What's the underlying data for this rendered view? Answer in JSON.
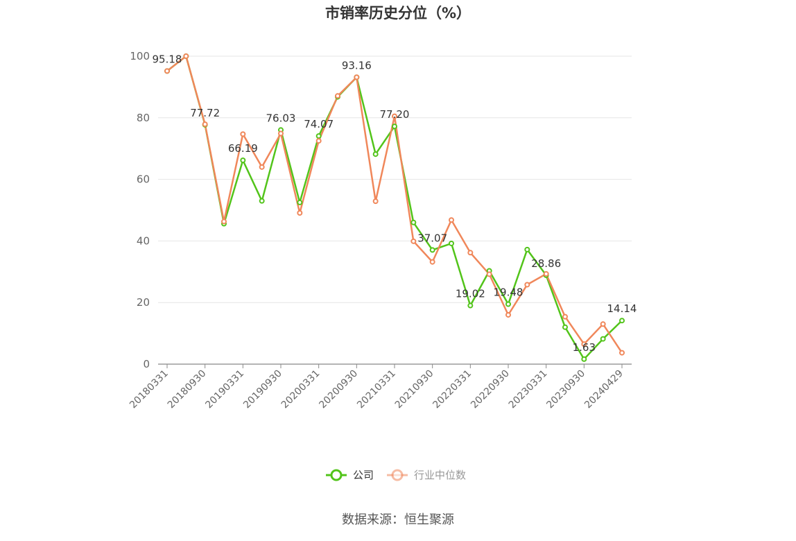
{
  "chart_data": {
    "type": "line",
    "title": "市销率历史分位（%）",
    "xlabel": "",
    "ylabel": "",
    "ylim": [
      0,
      100
    ],
    "yticks": [
      0,
      20,
      40,
      60,
      80,
      100
    ],
    "grid": true,
    "legend_position": "bottom",
    "x": [
      "20180331",
      "20180630",
      "20180930",
      "20181231",
      "20190331",
      "20190630",
      "20190930",
      "20191231",
      "20200331",
      "20200630",
      "20200930",
      "20201231",
      "20210331",
      "20210630",
      "20210930",
      "20211231",
      "20220331",
      "20220630",
      "20220930",
      "20221231",
      "20230331",
      "20230630",
      "20230930",
      "20231231",
      "20240429"
    ],
    "x_tick_labels": [
      "20180331",
      "20180930",
      "20190331",
      "20190930",
      "20200331",
      "20200930",
      "20210331",
      "20210930",
      "20220331",
      "20220930",
      "20230331",
      "20230930",
      "20240429"
    ],
    "series": [
      {
        "name": "公司",
        "color": "#52c41a",
        "values": [
          95.18,
          100,
          77.72,
          45.6,
          66.19,
          53.0,
          76.03,
          52.5,
          74.07,
          86.8,
          93.16,
          68.2,
          77.2,
          46.0,
          37.07,
          39.2,
          19.02,
          30.3,
          19.48,
          37.2,
          28.86,
          12.0,
          1.63,
          8.2,
          14.14
        ]
      },
      {
        "name": "行业中位数",
        "color": "#f0875a",
        "values": [
          95.18,
          100,
          77.9,
          46.3,
          74.7,
          64.0,
          74.9,
          49.1,
          72.5,
          87.1,
          93.16,
          52.9,
          80.5,
          39.9,
          33.2,
          46.8,
          36.2,
          29.2,
          16.0,
          25.8,
          29.3,
          15.4,
          6.5,
          13.0,
          3.7
        ]
      }
    ],
    "data_labels": [
      {
        "series": 0,
        "index": 0,
        "text": "95.18"
      },
      {
        "series": 0,
        "index": 2,
        "text": "77.72"
      },
      {
        "series": 0,
        "index": 4,
        "text": "66.19"
      },
      {
        "series": 0,
        "index": 6,
        "text": "76.03"
      },
      {
        "series": 0,
        "index": 8,
        "text": "74.07"
      },
      {
        "series": 0,
        "index": 10,
        "text": "93.16"
      },
      {
        "series": 0,
        "index": 12,
        "text": "77.20"
      },
      {
        "series": 0,
        "index": 14,
        "text": "37.07"
      },
      {
        "series": 0,
        "index": 16,
        "text": "19.02"
      },
      {
        "series": 0,
        "index": 18,
        "text": "19.48"
      },
      {
        "series": 0,
        "index": 20,
        "text": "28.86"
      },
      {
        "series": 0,
        "index": 22,
        "text": "1.63"
      },
      {
        "series": 0,
        "index": 24,
        "text": "14.14"
      }
    ]
  },
  "legend": {
    "items": [
      {
        "label": "公司",
        "color": "#52c41a",
        "text_color": "#333333"
      },
      {
        "label": "行业中位数",
        "color": "#f0875a",
        "text_color": "#999999"
      }
    ]
  },
  "footer": {
    "source": "数据来源：恒生聚源"
  }
}
